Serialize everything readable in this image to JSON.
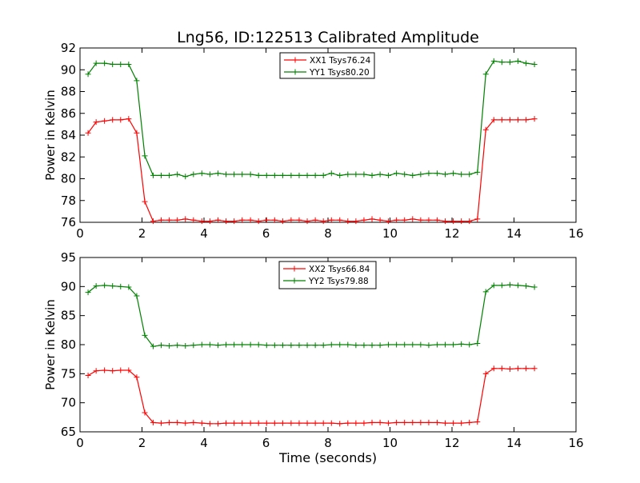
{
  "figure": {
    "title": "Lng56, ID:122513 Calibrated Amplitude",
    "xlabel": "Time (seconds)"
  },
  "chart_data": [
    {
      "type": "line",
      "title": "Lng56, ID:122513 Calibrated Amplitude",
      "xlabel": "",
      "ylabel": "Power in Kelvin",
      "xlim": [
        0,
        16
      ],
      "ylim": [
        76,
        92
      ],
      "xticks": [
        "0",
        "2",
        "4",
        "6",
        "8",
        "10",
        "12",
        "14",
        "16"
      ],
      "yticks": [
        "76",
        "78",
        "80",
        "82",
        "84",
        "86",
        "88",
        "90",
        "92"
      ],
      "grid": false,
      "legend_position": "top-center",
      "x": [
        0.26,
        0.52,
        0.79,
        1.05,
        1.31,
        1.57,
        1.83,
        2.09,
        2.36,
        2.62,
        2.88,
        3.14,
        3.4,
        3.66,
        3.93,
        4.19,
        4.45,
        4.71,
        4.97,
        5.23,
        5.5,
        5.76,
        6.02,
        6.28,
        6.54,
        6.81,
        7.07,
        7.33,
        7.59,
        7.85,
        8.11,
        8.38,
        8.64,
        8.9,
        9.16,
        9.42,
        9.68,
        9.95,
        10.21,
        10.47,
        10.73,
        10.99,
        11.25,
        11.52,
        11.78,
        12.04,
        12.3,
        12.56,
        12.82,
        13.09,
        13.35,
        13.61,
        13.87,
        14.13,
        14.39,
        14.66
      ],
      "series": [
        {
          "name": "XX1 Tsys76.24",
          "color": "#ff0000",
          "values": [
            84.2,
            85.2,
            85.3,
            85.4,
            85.4,
            85.5,
            84.2,
            77.9,
            76.1,
            76.2,
            76.2,
            76.2,
            76.3,
            76.2,
            76.1,
            76.1,
            76.2,
            76.1,
            76.1,
            76.2,
            76.2,
            76.1,
            76.2,
            76.2,
            76.1,
            76.2,
            76.2,
            76.1,
            76.2,
            76.1,
            76.2,
            76.2,
            76.1,
            76.1,
            76.2,
            76.3,
            76.2,
            76.1,
            76.2,
            76.2,
            76.3,
            76.2,
            76.2,
            76.2,
            76.1,
            76.1,
            76.1,
            76.1,
            76.3,
            84.5,
            85.4,
            85.4,
            85.4,
            85.4,
            85.4,
            85.5
          ]
        },
        {
          "name": "YY1 Tsys80.20",
          "color": "#008000",
          "values": [
            89.6,
            90.6,
            90.6,
            90.5,
            90.5,
            90.5,
            89.0,
            82.1,
            80.3,
            80.3,
            80.3,
            80.4,
            80.2,
            80.4,
            80.5,
            80.4,
            80.5,
            80.4,
            80.4,
            80.4,
            80.4,
            80.3,
            80.3,
            80.3,
            80.3,
            80.3,
            80.3,
            80.3,
            80.3,
            80.3,
            80.5,
            80.3,
            80.4,
            80.4,
            80.4,
            80.3,
            80.4,
            80.3,
            80.5,
            80.4,
            80.3,
            80.4,
            80.5,
            80.5,
            80.4,
            80.5,
            80.4,
            80.4,
            80.6,
            89.6,
            90.8,
            90.7,
            90.7,
            90.8,
            90.6,
            90.5
          ]
        }
      ]
    },
    {
      "type": "line",
      "title": "",
      "xlabel": "Time (seconds)",
      "ylabel": "Power in Kelvin",
      "xlim": [
        0,
        16
      ],
      "ylim": [
        65,
        95
      ],
      "xticks": [
        "0",
        "2",
        "4",
        "6",
        "8",
        "10",
        "12",
        "14",
        "16"
      ],
      "yticks": [
        "65",
        "70",
        "75",
        "80",
        "85",
        "90",
        "95"
      ],
      "grid": false,
      "legend_position": "top-center",
      "x": [
        0.26,
        0.52,
        0.79,
        1.05,
        1.31,
        1.57,
        1.83,
        2.09,
        2.36,
        2.62,
        2.88,
        3.14,
        3.4,
        3.66,
        3.93,
        4.19,
        4.45,
        4.71,
        4.97,
        5.23,
        5.5,
        5.76,
        6.02,
        6.28,
        6.54,
        6.81,
        7.07,
        7.33,
        7.59,
        7.85,
        8.11,
        8.38,
        8.64,
        8.9,
        9.16,
        9.42,
        9.68,
        9.95,
        10.21,
        10.47,
        10.73,
        10.99,
        11.25,
        11.52,
        11.78,
        12.04,
        12.3,
        12.56,
        12.82,
        13.09,
        13.35,
        13.61,
        13.87,
        14.13,
        14.39,
        14.66
      ],
      "series": [
        {
          "name": "XX2 Tsys66.84",
          "color": "#ff0000",
          "values": [
            74.7,
            75.5,
            75.6,
            75.5,
            75.6,
            75.6,
            74.4,
            68.3,
            66.6,
            66.5,
            66.6,
            66.6,
            66.5,
            66.6,
            66.5,
            66.4,
            66.4,
            66.5,
            66.5,
            66.5,
            66.5,
            66.5,
            66.5,
            66.5,
            66.5,
            66.5,
            66.5,
            66.5,
            66.5,
            66.5,
            66.5,
            66.4,
            66.5,
            66.5,
            66.5,
            66.6,
            66.6,
            66.5,
            66.6,
            66.6,
            66.6,
            66.6,
            66.6,
            66.6,
            66.5,
            66.5,
            66.5,
            66.6,
            66.7,
            75.0,
            75.9,
            75.9,
            75.8,
            75.9,
            75.9,
            75.9
          ]
        },
        {
          "name": "YY2 Tsys79.88",
          "color": "#008000",
          "values": [
            89.0,
            90.1,
            90.2,
            90.1,
            90.0,
            89.9,
            88.4,
            81.6,
            79.7,
            79.9,
            79.8,
            79.9,
            79.8,
            79.9,
            80.0,
            80.0,
            79.9,
            80.0,
            80.0,
            80.0,
            80.0,
            80.0,
            79.9,
            79.9,
            79.9,
            79.9,
            79.9,
            79.9,
            79.9,
            79.9,
            80.0,
            80.0,
            80.0,
            79.9,
            79.9,
            79.9,
            79.9,
            80.0,
            80.0,
            80.0,
            80.0,
            80.0,
            79.9,
            80.0,
            80.0,
            80.0,
            80.1,
            80.0,
            80.2,
            89.1,
            90.2,
            90.2,
            90.3,
            90.2,
            90.1,
            89.9
          ]
        }
      ]
    }
  ]
}
